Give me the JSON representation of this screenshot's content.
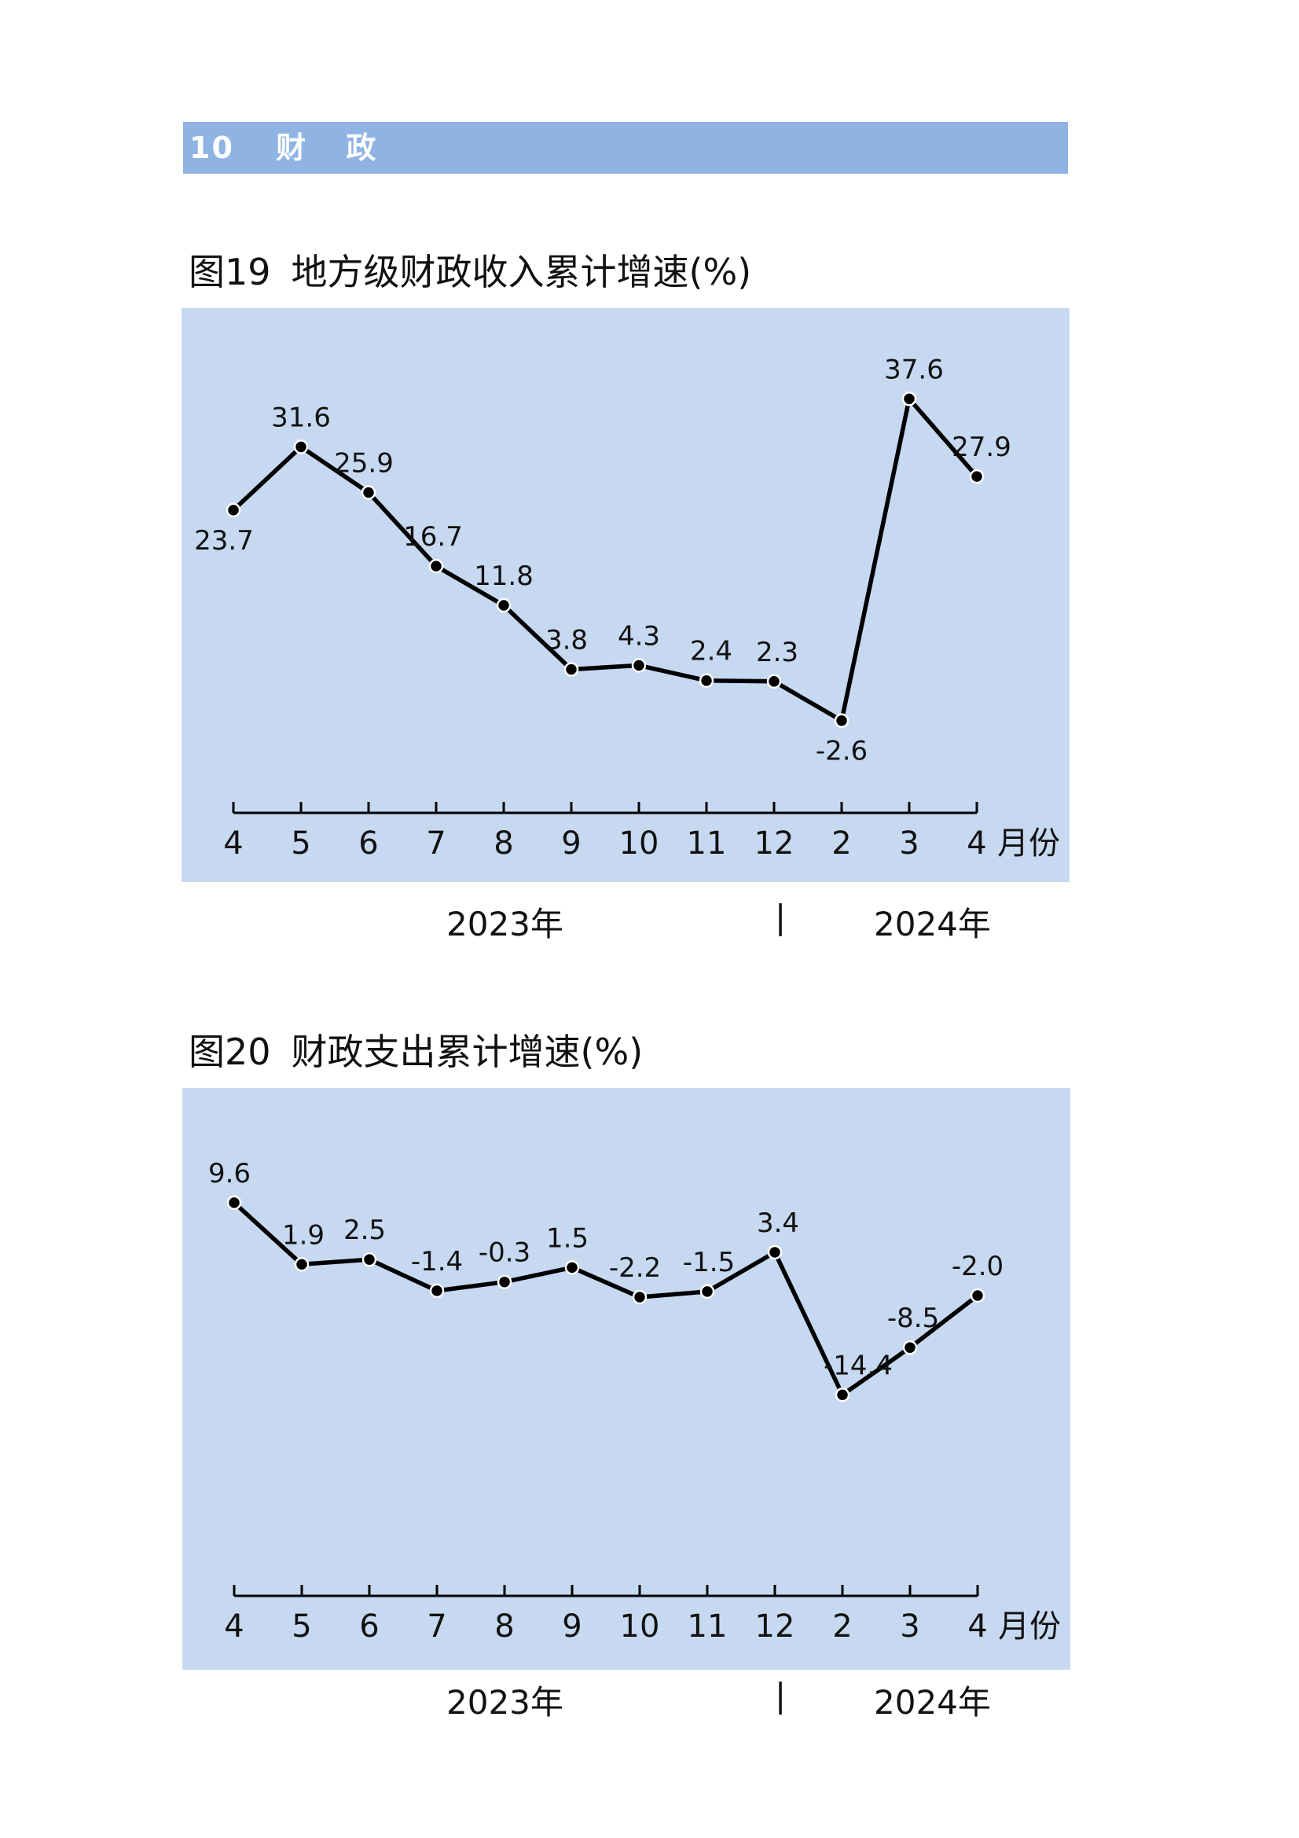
{
  "section": {
    "number": "10",
    "title_chars": [
      "财",
      "政"
    ]
  },
  "charts": [
    {
      "fig_label": "图19",
      "fig_title": "地方级财政收入累计增速(%)",
      "year_left": "2023年",
      "year_separator": "|",
      "year_right": "2024年"
    },
    {
      "fig_label": "图20",
      "fig_title": "财政支出累计增速(%)",
      "year_left": "2023年",
      "year_separator": "|",
      "year_right": "2024年"
    }
  ],
  "chart_data": [
    {
      "type": "line",
      "title": "图19 地方级财政收入累计增速(%)",
      "categories": [
        "4",
        "5",
        "6",
        "7",
        "8",
        "9",
        "10",
        "11",
        "12",
        "2",
        "3",
        "4"
      ],
      "x_unit_label": "月份",
      "values": [
        23.7,
        31.6,
        25.9,
        16.7,
        11.8,
        3.8,
        4.3,
        2.4,
        2.3,
        -2.6,
        37.6,
        27.9
      ],
      "labels": [
        "23.7",
        "31.6",
        "25.9",
        "16.7",
        "11.8",
        "3.8",
        "4.3",
        "2.4",
        "2.3",
        "-2.6",
        "37.6",
        "27.9"
      ],
      "label_position": [
        "below",
        "above",
        "above",
        "above",
        "above",
        "above",
        "above",
        "above",
        "above",
        "below",
        "above",
        "above"
      ],
      "ylim": [
        -10,
        45
      ],
      "grid": false,
      "line_color": "#000000",
      "background": "#c6d9f1"
    },
    {
      "type": "line",
      "title": "图20 财政支出累计增速(%)",
      "categories": [
        "4",
        "5",
        "6",
        "7",
        "8",
        "9",
        "10",
        "11",
        "12",
        "2",
        "3",
        "4"
      ],
      "x_unit_label": "月份",
      "values": [
        9.6,
        1.9,
        2.5,
        -1.4,
        -0.3,
        1.5,
        -2.2,
        -1.5,
        3.4,
        -14.4,
        -8.5,
        -2.0
      ],
      "labels": [
        "9.6",
        "1.9",
        "2.5",
        "-1.4",
        "-0.3",
        "1.5",
        "-2.2",
        "-1.5",
        "3.4",
        "-14.4",
        "-8.5",
        "-2.0"
      ],
      "label_position": [
        "above",
        "above",
        "above",
        "above",
        "above",
        "above",
        "above",
        "above",
        "above",
        "above",
        "above",
        "above"
      ],
      "ylim": [
        -35,
        20
      ],
      "grid": false,
      "line_color": "#000000",
      "background": "#c6d9f1"
    }
  ]
}
